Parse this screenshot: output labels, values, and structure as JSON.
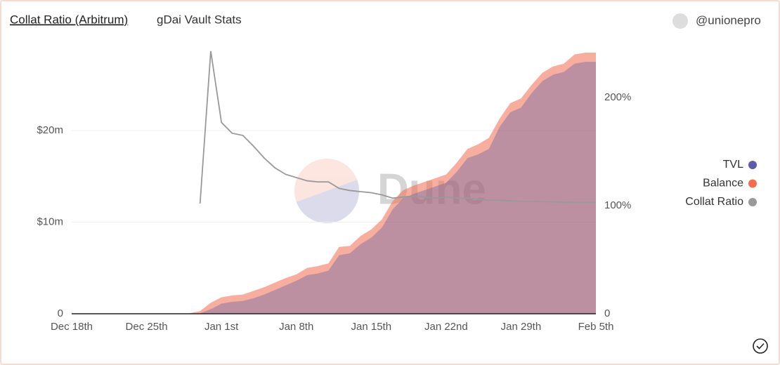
{
  "chart_data": {
    "type": "area",
    "title": "Collat Ratio (Arbitrum)",
    "subtitle": "gDai Vault Stats",
    "author": "@unionepro",
    "watermark": "Dune",
    "categories": [
      "Dec 18th",
      null,
      null,
      null,
      null,
      null,
      null,
      "Dec 25th",
      null,
      null,
      null,
      null,
      null,
      null,
      "Jan 1st",
      null,
      null,
      null,
      null,
      null,
      null,
      "Jan 8th",
      null,
      null,
      null,
      null,
      null,
      null,
      "Jan 15th",
      null,
      null,
      null,
      null,
      null,
      null,
      "Jan 22nd",
      null,
      null,
      null,
      null,
      null,
      null,
      "Jan 29th",
      null,
      null,
      null,
      null,
      null,
      null,
      "Feb 5th"
    ],
    "ylim": [
      0,
      29.5
    ],
    "yticks": [
      0,
      {
        "value": 10,
        "label": "$10m"
      },
      {
        "value": 20,
        "label": "$20m"
      }
    ],
    "y2lim": [
      0,
      250
    ],
    "y2ticks": [
      0,
      {
        "value": 100,
        "label": "100%"
      },
      {
        "value": 200,
        "label": "200%"
      }
    ],
    "grid": true,
    "legend": "right",
    "series": [
      {
        "name": "TVL",
        "color": "#5b5ea6",
        "values": [
          0,
          0,
          0,
          0,
          0,
          0,
          0,
          0,
          0,
          0,
          0,
          0,
          0.05,
          0.5,
          1.1,
          1.3,
          1.4,
          1.7,
          2.1,
          2.6,
          3.1,
          3.6,
          4.2,
          4.4,
          4.7,
          6.4,
          6.6,
          7.6,
          8.3,
          9.4,
          11.4,
          12.6,
          13.1,
          13.5,
          13.9,
          14.3,
          15.5,
          17.0,
          17.4,
          18.0,
          20.4,
          22.0,
          22.5,
          24.1,
          25.4,
          26.1,
          26.4,
          27.3,
          27.5,
          27.5
        ]
      },
      {
        "name": "Balance",
        "color": "#f26c4f",
        "values": [
          0,
          0,
          0,
          0,
          0,
          0,
          0,
          0,
          0,
          0,
          0,
          0.05,
          0.3,
          1.2,
          1.8,
          2.0,
          2.1,
          2.5,
          2.9,
          3.4,
          3.9,
          4.3,
          5.0,
          5.2,
          5.5,
          7.3,
          7.4,
          8.5,
          9.2,
          10.3,
          12.3,
          13.5,
          14.0,
          14.4,
          14.8,
          15.2,
          16.5,
          18.0,
          18.5,
          19.2,
          21.3,
          23.0,
          23.5,
          25.0,
          26.3,
          27.0,
          27.3,
          28.3,
          28.5,
          28.5
        ]
      },
      {
        "name": "Collat Ratio",
        "color": "#999999",
        "axis": "y2",
        "values": [
          null,
          null,
          null,
          null,
          null,
          null,
          null,
          null,
          null,
          null,
          null,
          null,
          102,
          243,
          177,
          167,
          165,
          155,
          144,
          135,
          129,
          126,
          123,
          122,
          122,
          116,
          114,
          113,
          112,
          110,
          107,
          108,
          109,
          108,
          107,
          108,
          107,
          107,
          106,
          105,
          105,
          104.5,
          104,
          104,
          103.8,
          103.5,
          103.3,
          103,
          103,
          103
        ]
      }
    ]
  }
}
